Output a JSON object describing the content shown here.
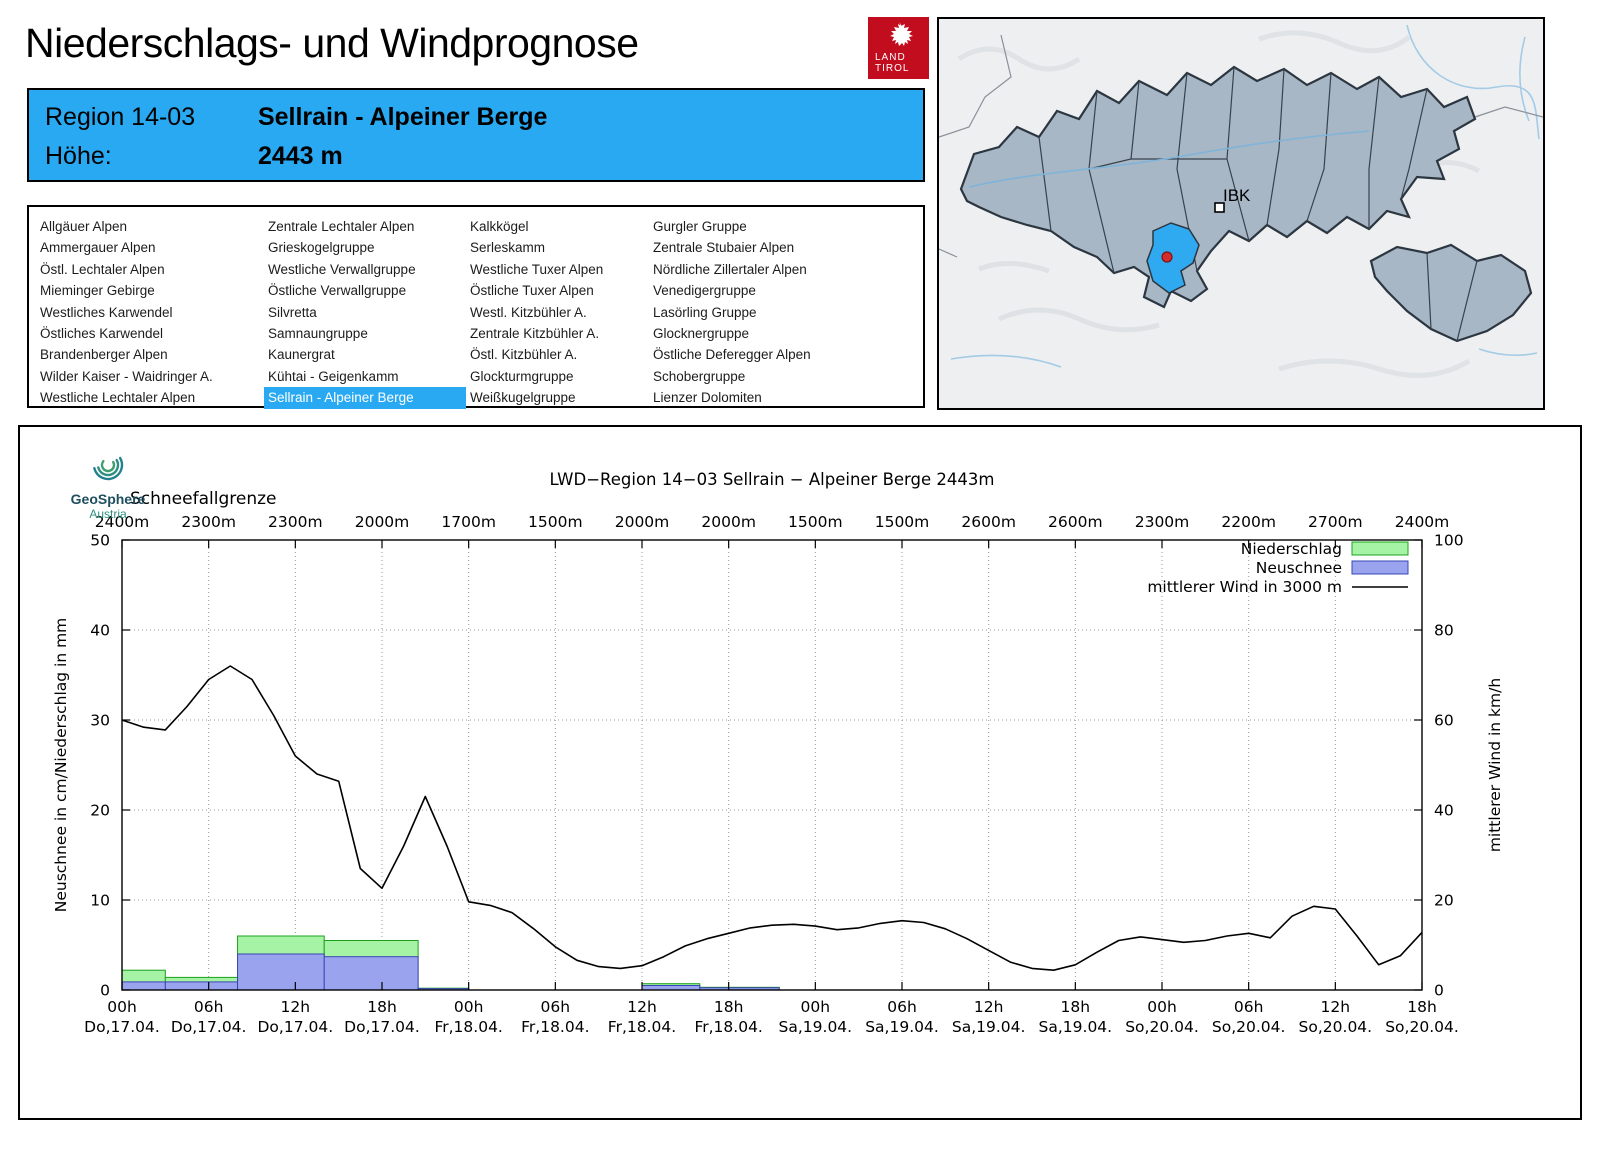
{
  "header": {
    "title": "Niederschlags- und Windprognose",
    "logo": {
      "line1": "LAND",
      "line2": "TIROL"
    }
  },
  "region_box": {
    "region_label": "Region 14-03",
    "region_name": "Sellrain - Alpeiner Berge",
    "altitude_label": "Höhe:",
    "altitude_value": "2443 m"
  },
  "region_list": {
    "selected": "Sellrain - Alpeiner Berge",
    "columns": [
      [
        "Allgäuer Alpen",
        "Ammergauer Alpen",
        "Östl. Lechtaler Alpen",
        "Mieminger Gebirge",
        "Westliches Karwendel",
        "Östliches Karwendel",
        "Brandenberger Alpen",
        "Wilder Kaiser - Waidringer A.",
        "Westliche Lechtaler Alpen"
      ],
      [
        "Zentrale Lechtaler Alpen",
        "Grieskogelgruppe",
        "Westliche Verwallgruppe",
        "Östliche Verwallgruppe",
        "Silvretta",
        "Samnaungruppe",
        "Kaunergrat",
        "Kühtai - Geigenkamm",
        "Sellrain - Alpeiner Berge"
      ],
      [
        "Kalkkögel",
        "Serleskamm",
        "Westliche Tuxer Alpen",
        "Östliche Tuxer Alpen",
        "Westl. Kitzbühler A.",
        "Zentrale Kitzbühler A.",
        "Östl. Kitzbühler A.",
        "Glockturmgruppe",
        "Weißkugelgruppe"
      ],
      [
        "Gurgler Gruppe",
        "Zentrale Stubaier Alpen",
        "Nördliche Zillertaler Alpen",
        "Venedigergruppe",
        "Lasörling Gruppe",
        "Glocknergruppe",
        "Östliche Deferegger Alpen",
        "Schobergruppe",
        "Lienzer Dolomiten"
      ]
    ]
  },
  "map": {
    "city_label": "IBK"
  },
  "geosphere": {
    "name": "GeoSphere",
    "country": "Austria"
  },
  "chart_data": {
    "type": "composite",
    "title": "LWD−Region 14−03 Sellrain − Alpeiner Berge 2443m",
    "snowline_label": "Schneefallgrenze",
    "snowline_values": [
      "2400m",
      "2300m",
      "2300m",
      "2000m",
      "1700m",
      "1500m",
      "2000m",
      "2000m",
      "1500m",
      "1500m",
      "2600m",
      "2600m",
      "2300m",
      "2200m",
      "2700m",
      "2400m"
    ],
    "x_range_h": [
      0,
      90
    ],
    "x_ticks": [
      {
        "t": "00h",
        "d": "Do,17.04."
      },
      {
        "t": "06h",
        "d": "Do,17.04."
      },
      {
        "t": "12h",
        "d": "Do,17.04."
      },
      {
        "t": "18h",
        "d": "Do,17.04."
      },
      {
        "t": "00h",
        "d": "Fr,18.04."
      },
      {
        "t": "06h",
        "d": "Fr,18.04."
      },
      {
        "t": "12h",
        "d": "Fr,18.04."
      },
      {
        "t": "18h",
        "d": "Fr,18.04."
      },
      {
        "t": "00h",
        "d": "Sa,19.04."
      },
      {
        "t": "06h",
        "d": "Sa,19.04."
      },
      {
        "t": "12h",
        "d": "Sa,19.04."
      },
      {
        "t": "18h",
        "d": "Sa,19.04."
      },
      {
        "t": "00h",
        "d": "So,20.04."
      },
      {
        "t": "06h",
        "d": "So,20.04."
      },
      {
        "t": "12h",
        "d": "So,20.04."
      },
      {
        "t": "18h",
        "d": "So,20.04."
      }
    ],
    "ylabel_left": "Neuschnee in cm/Niederschlag in mm",
    "ylabel_right": "mittlerer Wind in km/h",
    "ylim_left": [
      0,
      50
    ],
    "ylim_right": [
      0,
      100
    ],
    "y_ticks_left": [
      0,
      10,
      20,
      30,
      40,
      50
    ],
    "y_ticks_right": [
      0,
      20,
      40,
      60,
      80,
      100
    ],
    "legend": [
      {
        "label": "Niederschlag",
        "type": "box",
        "fill": "#a6f3a6",
        "stroke": "#1ca01c"
      },
      {
        "label": "Neuschnee",
        "type": "box",
        "fill": "#9aa3ee",
        "stroke": "#3a44b4"
      },
      {
        "label": "mittlerer Wind in 3000 m",
        "type": "line",
        "stroke": "#000000"
      }
    ],
    "colors": {
      "niederschlag_fill": "#a6f3a6",
      "niederschlag_stroke": "#1ca01c",
      "neuschnee_fill": "#9aa3ee",
      "neuschnee_stroke": "#3a44b4",
      "wind": "#000000",
      "grid": "#999999"
    },
    "bars": [
      {
        "from_h": 0,
        "to_h": 3,
        "niederschlag_mm": 2.2,
        "neuschnee_cm": 0.9
      },
      {
        "from_h": 3,
        "to_h": 8,
        "niederschlag_mm": 1.4,
        "neuschnee_cm": 0.9
      },
      {
        "from_h": 8,
        "to_h": 14,
        "niederschlag_mm": 6.0,
        "neuschnee_cm": 4.0
      },
      {
        "from_h": 14,
        "to_h": 20.5,
        "niederschlag_mm": 5.5,
        "neuschnee_cm": 3.7
      },
      {
        "from_h": 20.5,
        "to_h": 24,
        "niederschlag_mm": 0.2,
        "neuschnee_cm": 0.15
      },
      {
        "from_h": 36,
        "to_h": 40,
        "niederschlag_mm": 0.7,
        "neuschnee_cm": 0.5
      },
      {
        "from_h": 40,
        "to_h": 45.5,
        "niederschlag_mm": 0.3,
        "neuschnee_cm": 0.25
      }
    ],
    "wind": {
      "label": "mittlerer Wind in 3000 m",
      "unit": "km/h",
      "axis": "right",
      "start_h": 0,
      "step_h": 1.5,
      "values_kmh": [
        60.0,
        58.4,
        57.8,
        63.0,
        69.0,
        72.0,
        69.0,
        61.0,
        52.0,
        48.0,
        46.4,
        27.0,
        22.6,
        32.0,
        43.0,
        32.0,
        19.6,
        18.8,
        17.2,
        13.6,
        9.6,
        6.6,
        5.2,
        4.8,
        5.4,
        7.4,
        9.8,
        11.4,
        12.6,
        13.8,
        14.4,
        14.6,
        14.2,
        13.4,
        13.8,
        14.8,
        15.4,
        15.0,
        13.6,
        11.4,
        8.8,
        6.2,
        4.8,
        4.4,
        5.6,
        8.4,
        11.0,
        11.8,
        11.2,
        10.6,
        11.0,
        12.0,
        12.6,
        11.6,
        16.4,
        18.6,
        18.0,
        12.0,
        5.6,
        7.6,
        12.8
      ]
    }
  }
}
